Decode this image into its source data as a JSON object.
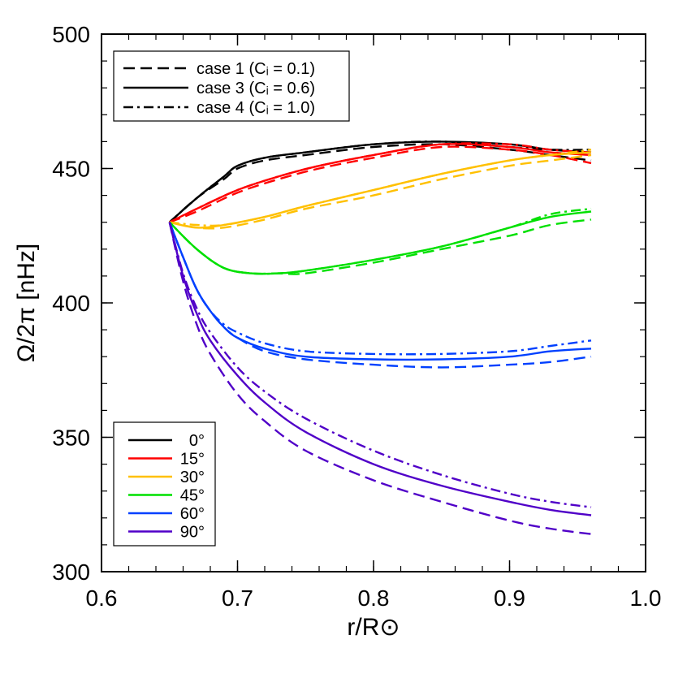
{
  "chart_data": {
    "type": "line",
    "xlabel": "r/R⊙",
    "ylabel": "Ω/2π [nHz]",
    "xlim": [
      0.6,
      1.0
    ],
    "ylim": [
      300,
      500
    ],
    "xticks": [
      "0.6",
      "0.7",
      "0.8",
      "0.9",
      "1.0"
    ],
    "yticks": [
      "300",
      "350",
      "400",
      "450",
      "500"
    ],
    "grid": false,
    "case_legend": {
      "placement": "top-left",
      "entries": [
        {
          "label": "case 1 (Cᵢ = 0.1)",
          "dash": "dashed"
        },
        {
          "label": "case 3 (Cᵢ = 0.6)",
          "dash": "solid"
        },
        {
          "label": "case 4 (Cᵢ = 1.0)",
          "dash": "dashdot"
        }
      ]
    },
    "latitude_legend": {
      "placement": "bottom-left",
      "entries": [
        {
          "label": "0°",
          "color": "#000000"
        },
        {
          "label": "15°",
          "color": "#ff0000"
        },
        {
          "label": "30°",
          "color": "#ffc000"
        },
        {
          "label": "45°",
          "color": "#00e000"
        },
        {
          "label": "60°",
          "color": "#0040ff"
        },
        {
          "label": "90°",
          "color": "#5000c8"
        }
      ]
    },
    "series": [
      {
        "latitude": "0°",
        "case": "case 3",
        "color": "#000000",
        "dash": "solid",
        "x": [
          0.65,
          0.67,
          0.69,
          0.7,
          0.72,
          0.75,
          0.8,
          0.85,
          0.9,
          0.93,
          0.96
        ],
        "y": [
          430,
          439,
          447,
          451,
          454,
          456,
          459,
          460,
          459,
          457,
          456
        ]
      },
      {
        "latitude": "0°",
        "case": "case 1",
        "color": "#000000",
        "dash": "dashed",
        "x": [
          0.65,
          0.67,
          0.69,
          0.7,
          0.72,
          0.75,
          0.8,
          0.85,
          0.9,
          0.93,
          0.96
        ],
        "y": [
          430,
          439,
          446,
          450,
          453,
          455,
          458,
          459,
          457,
          455,
          453
        ]
      },
      {
        "latitude": "0°",
        "case": "case 4",
        "color": "#000000",
        "dash": "dashdot",
        "x": [
          0.65,
          0.67,
          0.69,
          0.7,
          0.72,
          0.75,
          0.8,
          0.85,
          0.9,
          0.93,
          0.96
        ],
        "y": [
          430,
          439,
          447,
          451,
          454,
          456,
          459,
          460,
          458,
          457,
          457
        ]
      },
      {
        "latitude": "15°",
        "case": "case 3",
        "color": "#ff0000",
        "dash": "solid",
        "x": [
          0.65,
          0.67,
          0.7,
          0.73,
          0.76,
          0.8,
          0.85,
          0.9,
          0.93,
          0.96
        ],
        "y": [
          430,
          435,
          442,
          447,
          451,
          455,
          459,
          458,
          456,
          455
        ]
      },
      {
        "latitude": "15°",
        "case": "case 1",
        "color": "#ff0000",
        "dash": "dashed",
        "x": [
          0.65,
          0.67,
          0.7,
          0.73,
          0.76,
          0.8,
          0.85,
          0.9,
          0.93,
          0.96
        ],
        "y": [
          430,
          434,
          441,
          446,
          450,
          454,
          458,
          457,
          455,
          452
        ]
      },
      {
        "latitude": "15°",
        "case": "case 4",
        "color": "#ff0000",
        "dash": "dashdot",
        "x": [
          0.65,
          0.67,
          0.7,
          0.73,
          0.76,
          0.8,
          0.85,
          0.9,
          0.93,
          0.96
        ],
        "y": [
          430,
          435,
          442,
          447,
          451,
          455,
          459,
          459,
          457,
          456
        ]
      },
      {
        "latitude": "30°",
        "case": "case 3",
        "color": "#ffc000",
        "dash": "solid",
        "x": [
          0.65,
          0.67,
          0.69,
          0.72,
          0.75,
          0.8,
          0.85,
          0.9,
          0.93,
          0.96
        ],
        "y": [
          430,
          428,
          429,
          432,
          436,
          442,
          448,
          453,
          455,
          456
        ]
      },
      {
        "latitude": "30°",
        "case": "case 1",
        "color": "#ffc000",
        "dash": "dashed",
        "x": [
          0.65,
          0.67,
          0.69,
          0.72,
          0.75,
          0.8,
          0.85,
          0.9,
          0.93,
          0.96
        ],
        "y": [
          430,
          428,
          428,
          431,
          435,
          440,
          446,
          451,
          453,
          455
        ]
      },
      {
        "latitude": "30°",
        "case": "case 4",
        "color": "#ffc000",
        "dash": "dashdot",
        "x": [
          0.65,
          0.67,
          0.69,
          0.72,
          0.75,
          0.8,
          0.85,
          0.9,
          0.93,
          0.96
        ],
        "y": [
          430,
          429,
          429,
          432,
          436,
          442,
          448,
          453,
          455,
          457
        ]
      },
      {
        "latitude": "45°",
        "case": "case 3",
        "color": "#00e000",
        "dash": "solid",
        "x": [
          0.65,
          0.67,
          0.69,
          0.71,
          0.73,
          0.75,
          0.8,
          0.85,
          0.9,
          0.93,
          0.96
        ],
        "y": [
          430,
          420,
          413,
          411,
          411,
          412,
          416,
          421,
          428,
          432,
          434
        ]
      },
      {
        "latitude": "45°",
        "case": "case 1",
        "color": "#00e000",
        "dash": "dashed",
        "x": [
          0.65,
          0.67,
          0.69,
          0.71,
          0.73,
          0.75,
          0.8,
          0.85,
          0.9,
          0.93,
          0.96
        ],
        "y": [
          430,
          420,
          413,
          411,
          411,
          411,
          415,
          420,
          425,
          429,
          431
        ]
      },
      {
        "latitude": "45°",
        "case": "case 4",
        "color": "#00e000",
        "dash": "dashdot",
        "x": [
          0.65,
          0.67,
          0.69,
          0.71,
          0.73,
          0.75,
          0.8,
          0.85,
          0.9,
          0.93,
          0.96
        ],
        "y": [
          430,
          420,
          413,
          411,
          411,
          412,
          416,
          421,
          428,
          433,
          435
        ]
      },
      {
        "latitude": "60°",
        "case": "case 3",
        "color": "#0040ff",
        "dash": "solid",
        "x": [
          0.65,
          0.66,
          0.67,
          0.68,
          0.69,
          0.7,
          0.72,
          0.75,
          0.8,
          0.85,
          0.9,
          0.93,
          0.96
        ],
        "y": [
          430,
          417,
          405,
          397,
          391,
          387,
          383,
          380,
          379,
          379,
          380,
          382,
          383
        ]
      },
      {
        "latitude": "60°",
        "case": "case 1",
        "color": "#0040ff",
        "dash": "dashed",
        "x": [
          0.65,
          0.66,
          0.67,
          0.68,
          0.69,
          0.7,
          0.72,
          0.75,
          0.8,
          0.85,
          0.9,
          0.93,
          0.96
        ],
        "y": [
          430,
          417,
          405,
          397,
          391,
          387,
          382,
          379,
          377,
          376,
          377,
          378,
          380
        ]
      },
      {
        "latitude": "60°",
        "case": "case 4",
        "color": "#0040ff",
        "dash": "dashdot",
        "x": [
          0.65,
          0.66,
          0.67,
          0.68,
          0.69,
          0.7,
          0.72,
          0.75,
          0.8,
          0.85,
          0.9,
          0.93,
          0.96
        ],
        "y": [
          430,
          417,
          405,
          397,
          392,
          389,
          385,
          382,
          381,
          381,
          382,
          384,
          386
        ]
      },
      {
        "latitude": "90°",
        "case": "case 3",
        "color": "#5000c8",
        "dash": "solid",
        "x": [
          0.65,
          0.66,
          0.67,
          0.68,
          0.7,
          0.72,
          0.75,
          0.8,
          0.85,
          0.9,
          0.93,
          0.96
        ],
        "y": [
          430,
          410,
          396,
          386,
          373,
          363,
          352,
          340,
          332,
          326,
          323,
          321
        ]
      },
      {
        "latitude": "90°",
        "case": "case 1",
        "color": "#5000c8",
        "dash": "dashed",
        "x": [
          0.65,
          0.66,
          0.67,
          0.68,
          0.7,
          0.72,
          0.75,
          0.8,
          0.85,
          0.9,
          0.93,
          0.96
        ],
        "y": [
          430,
          408,
          392,
          381,
          366,
          356,
          345,
          334,
          326,
          319,
          316,
          314
        ]
      },
      {
        "latitude": "90°",
        "case": "case 4",
        "color": "#5000c8",
        "dash": "dashdot",
        "x": [
          0.65,
          0.66,
          0.67,
          0.68,
          0.7,
          0.72,
          0.75,
          0.8,
          0.85,
          0.9,
          0.93,
          0.96
        ],
        "y": [
          430,
          411,
          398,
          389,
          376,
          367,
          357,
          345,
          336,
          329,
          326,
          324
        ]
      }
    ]
  }
}
